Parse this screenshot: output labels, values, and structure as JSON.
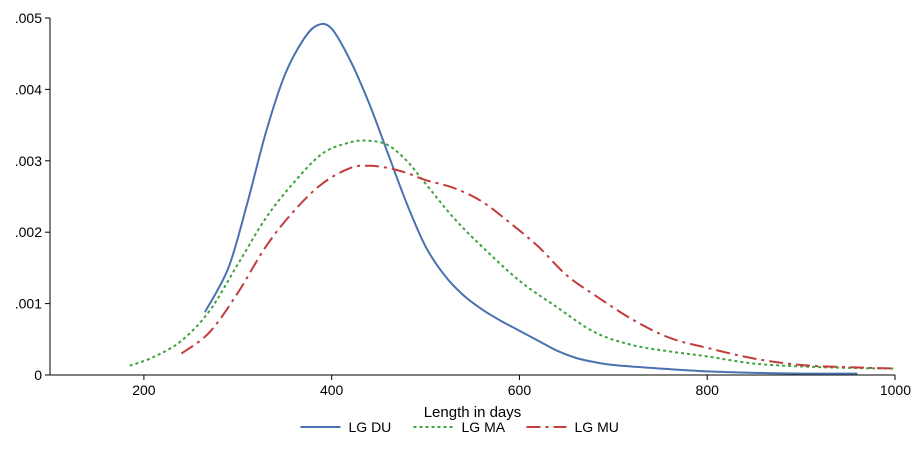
{
  "chart_data": {
    "type": "line",
    "title": "",
    "xlabel": "Length in days",
    "ylabel": "",
    "xlim": [
      100,
      1000
    ],
    "ylim": [
      0,
      0.005
    ],
    "x_ticks": [
      200,
      400,
      600,
      800,
      1000
    ],
    "x_tick_labels": [
      "200",
      "400",
      "600",
      "800",
      "1000"
    ],
    "y_ticks": [
      0,
      0.001,
      0.002,
      0.003,
      0.004,
      0.005
    ],
    "y_tick_labels": [
      "0",
      ".001",
      ".002",
      ".003",
      ".004",
      ".005"
    ],
    "grid": false,
    "legend_position": "bottom",
    "series": [
      {
        "name": "LG DU",
        "color": "#4a72b0",
        "dash": "solid",
        "x": [
          265,
          290,
          310,
          330,
          350,
          370,
          385,
          400,
          420,
          440,
          460,
          480,
          500,
          520,
          540,
          560,
          580,
          600,
          620,
          640,
          660,
          680,
          700,
          750,
          800,
          850,
          900,
          960
        ],
        "y": [
          0.00088,
          0.0015,
          0.0024,
          0.0034,
          0.0042,
          0.0047,
          0.0049,
          0.00485,
          0.0044,
          0.0038,
          0.0031,
          0.0024,
          0.0018,
          0.0014,
          0.00112,
          0.00092,
          0.00076,
          0.00062,
          0.00048,
          0.00034,
          0.00024,
          0.00018,
          0.00014,
          9e-05,
          5e-05,
          3e-05,
          2e-05,
          2e-05
        ]
      },
      {
        "name": "LG MA",
        "color": "#3da33d",
        "dash": "dotted",
        "x": [
          185,
          210,
          240,
          270,
          300,
          330,
          360,
          390,
          420,
          440,
          460,
          480,
          500,
          530,
          560,
          600,
          640,
          680,
          720,
          760,
          800,
          850,
          900,
          950,
          1000
        ],
        "y": [
          0.00013,
          0.00025,
          0.00048,
          0.0009,
          0.00155,
          0.0022,
          0.0027,
          0.0031,
          0.00326,
          0.00328,
          0.00322,
          0.003,
          0.00268,
          0.0022,
          0.0018,
          0.00132,
          0.00095,
          0.0006,
          0.00042,
          0.00033,
          0.00026,
          0.00016,
          0.00012,
          0.0001,
          9e-05
        ]
      },
      {
        "name": "LG MU",
        "color": "#c43c3c",
        "dash": "dashdot",
        "x": [
          240,
          270,
          300,
          330,
          360,
          390,
          420,
          440,
          460,
          480,
          500,
          530,
          560,
          590,
          620,
          650,
          680,
          720,
          760,
          800,
          850,
          900,
          950,
          1000
        ],
        "y": [
          0.0003,
          0.0006,
          0.00115,
          0.0018,
          0.0023,
          0.00268,
          0.0029,
          0.00293,
          0.0029,
          0.00283,
          0.00273,
          0.00262,
          0.00243,
          0.00213,
          0.0018,
          0.0014,
          0.00112,
          0.00078,
          0.00052,
          0.00038,
          0.00023,
          0.00014,
          0.00011,
          9e-05
        ]
      }
    ]
  }
}
